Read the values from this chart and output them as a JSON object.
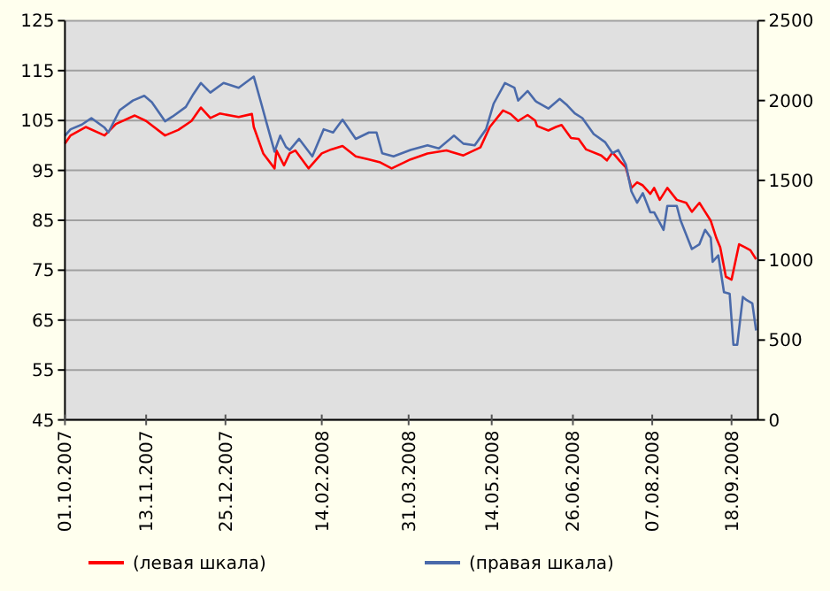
{
  "chart_data": {
    "type": "line",
    "xlim": [
      "2007-10-01",
      "2008-10-02"
    ],
    "xticks": [
      {
        "value": "2007-10-01",
        "label": "01.10.2007"
      },
      {
        "value": "2007-11-13",
        "label": "13.11.2007"
      },
      {
        "value": "2007-12-25",
        "label": "25.12.2007"
      },
      {
        "value": "2008-02-14",
        "label": "14.02.2008"
      },
      {
        "value": "2008-03-31",
        "label": "31.03.2008"
      },
      {
        "value": "2008-05-14",
        "label": "14.05.2008"
      },
      {
        "value": "2008-06-26",
        "label": "26.06.2008"
      },
      {
        "value": "2008-08-07",
        "label": "07.08.2008"
      },
      {
        "value": "2008-09-18",
        "label": "18.09.2008"
      }
    ],
    "ylim": [
      45,
      125
    ],
    "yticks": [
      45,
      55,
      65,
      75,
      85,
      95,
      105,
      115,
      125
    ],
    "y2lim": [
      0,
      2500
    ],
    "y2ticks": [
      0,
      500,
      1000,
      1500,
      2000,
      2500
    ],
    "grid": "y",
    "legend": "bottom",
    "line_style": "solid",
    "series": [
      {
        "name": "(левая шкала)",
        "color": "#ff0000",
        "x": [
          "2007-10-01",
          "2007-10-04",
          "2007-10-12",
          "2007-10-22",
          "2007-10-28",
          "2007-11-07",
          "2007-11-13",
          "2007-11-23",
          "2007-11-30",
          "2007-12-07",
          "2007-12-12",
          "2007-12-17",
          "2007-12-22",
          "2008-01-01",
          "2008-01-08",
          "2008-01-09",
          "2008-01-14",
          "2008-01-20",
          "2008-01-21",
          "2008-01-25",
          "2008-01-28",
          "2008-01-31",
          "2008-02-07",
          "2008-02-14",
          "2008-02-19",
          "2008-02-25",
          "2008-03-03",
          "2008-03-10",
          "2008-03-16",
          "2008-03-22",
          "2008-04-01",
          "2008-04-10",
          "2008-04-20",
          "2008-04-29",
          "2008-05-08",
          "2008-05-13",
          "2008-05-20",
          "2008-05-24",
          "2008-05-28",
          "2008-06-02",
          "2008-06-06",
          "2008-06-07",
          "2008-06-13",
          "2008-06-17",
          "2008-06-20",
          "2008-06-25",
          "2008-06-29",
          "2008-07-03",
          "2008-07-11",
          "2008-07-14",
          "2008-07-17",
          "2008-07-21",
          "2008-07-24",
          "2008-07-27",
          "2008-07-30",
          "2008-08-02",
          "2008-08-06",
          "2008-08-08",
          "2008-08-11",
          "2008-08-15",
          "2008-08-20",
          "2008-08-25",
          "2008-08-28",
          "2008-09-01",
          "2008-09-04",
          "2008-09-07",
          "2008-09-10",
          "2008-09-12",
          "2008-09-15",
          "2008-09-18",
          "2008-09-22",
          "2008-09-25",
          "2008-09-28",
          "2008-10-01"
        ],
        "values": [
          100.4,
          102,
          103.7,
          102,
          104.3,
          106,
          104.9,
          102,
          103.1,
          104.9,
          107.6,
          105.5,
          106.4,
          105.7,
          106.3,
          103.7,
          98.4,
          95.4,
          99,
          96,
          98.4,
          99,
          95.4,
          98.4,
          99.2,
          99.9,
          97.8,
          97.2,
          96.6,
          95.4,
          97.2,
          98.4,
          99,
          98,
          99.6,
          103.7,
          107,
          106.3,
          104.9,
          106.1,
          105,
          103.9,
          103,
          103.7,
          104.1,
          101.5,
          101.3,
          99.2,
          98,
          97,
          98.6,
          96.8,
          95.6,
          91.5,
          92.6,
          92,
          90.3,
          91.5,
          89.1,
          91.5,
          89.1,
          88.5,
          86.7,
          88.5,
          86.7,
          84.9,
          81.4,
          79.6,
          73.7,
          73.1,
          80.2,
          79.6,
          79,
          77.2
        ]
      },
      {
        "name": "(правая шкала)",
        "color": "#4a6aaa",
        "axis": "y2",
        "x": [
          "2007-10-01",
          "2007-10-04",
          "2007-10-10",
          "2007-10-15",
          "2007-10-22",
          "2007-10-24",
          "2007-10-30",
          "2007-11-06",
          "2007-11-12",
          "2007-11-16",
          "2007-11-23",
          "2007-11-27",
          "2007-12-04",
          "2007-12-08",
          "2007-12-12",
          "2007-12-17",
          "2007-12-24",
          "2008-01-01",
          "2008-01-09",
          "2008-01-13",
          "2008-01-16",
          "2008-01-20",
          "2008-01-23",
          "2008-01-26",
          "2008-01-28",
          "2008-02-02",
          "2008-02-09",
          "2008-02-15",
          "2008-02-20",
          "2008-02-25",
          "2008-03-03",
          "2008-03-10",
          "2008-03-14",
          "2008-03-17",
          "2008-03-23",
          "2008-04-01",
          "2008-04-10",
          "2008-04-16",
          "2008-04-24",
          "2008-04-29",
          "2008-05-05",
          "2008-05-11",
          "2008-05-15",
          "2008-05-21",
          "2008-05-26",
          "2008-05-28",
          "2008-06-02",
          "2008-06-06",
          "2008-06-07",
          "2008-06-13",
          "2008-06-19",
          "2008-06-23",
          "2008-06-27",
          "2008-07-01",
          "2008-07-07",
          "2008-07-13",
          "2008-07-17",
          "2008-07-20",
          "2008-07-24",
          "2008-07-27",
          "2008-07-30",
          "2008-08-02",
          "2008-08-06",
          "2008-08-08",
          "2008-08-13",
          "2008-08-15",
          "2008-08-20",
          "2008-08-22",
          "2008-08-28",
          "2008-09-01",
          "2008-09-04",
          "2008-09-07",
          "2008-09-08",
          "2008-09-11",
          "2008-09-14",
          "2008-09-17",
          "2008-09-19",
          "2008-09-21",
          "2008-09-24",
          "2008-09-26",
          "2008-09-29",
          "2008-10-01"
        ],
        "values": [
          1780,
          1820,
          1850,
          1890,
          1830,
          1800,
          1940,
          2000,
          2030,
          1990,
          1870,
          1900,
          1960,
          2040,
          2110,
          2050,
          2110,
          2080,
          2150,
          1980,
          1850,
          1680,
          1780,
          1710,
          1690,
          1760,
          1650,
          1820,
          1800,
          1880,
          1760,
          1800,
          1800,
          1670,
          1650,
          1690,
          1720,
          1700,
          1780,
          1730,
          1720,
          1820,
          1980,
          2110,
          2080,
          2000,
          2060,
          2000,
          1990,
          1950,
          2010,
          1970,
          1920,
          1890,
          1790,
          1740,
          1670,
          1690,
          1600,
          1430,
          1360,
          1420,
          1300,
          1300,
          1190,
          1340,
          1340,
          1250,
          1070,
          1100,
          1190,
          1140,
          990,
          1030,
          800,
          790,
          470,
          470,
          770,
          750,
          730,
          560
        ]
      }
    ]
  }
}
